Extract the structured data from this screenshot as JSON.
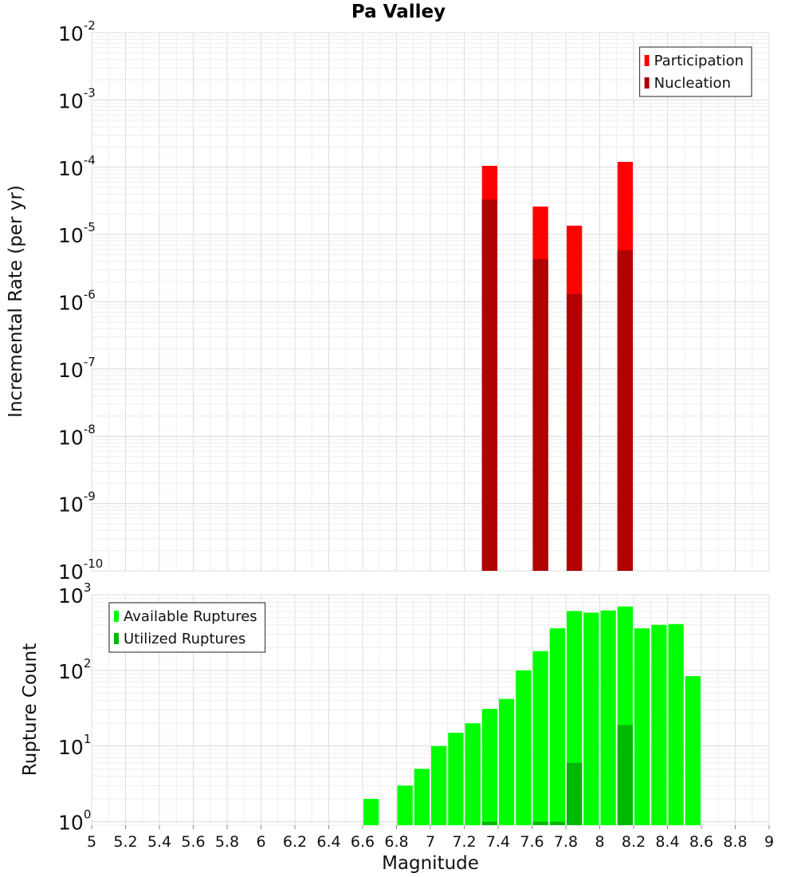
{
  "chart_data": [
    {
      "type": "bar",
      "title": "Pa Valley",
      "ylabel": "Incremental Rate (per yr)",
      "xlabel": "",
      "x_range": [
        5,
        9
      ],
      "y_scale": "log",
      "ylim": [
        1e-10,
        0.01
      ],
      "y_ticks": [
        {
          "base": "10",
          "exp": "-2"
        },
        {
          "base": "10",
          "exp": "-3"
        },
        {
          "base": "10",
          "exp": "-4"
        },
        {
          "base": "10",
          "exp": "-5"
        },
        {
          "base": "10",
          "exp": "-6"
        },
        {
          "base": "10",
          "exp": "-7"
        },
        {
          "base": "10",
          "exp": "-8"
        },
        {
          "base": "10",
          "exp": "-9"
        },
        {
          "base": "10",
          "exp": "-10"
        }
      ],
      "grid": true,
      "legend_position": "top-right",
      "bin_width": 0.1,
      "x": [
        7.35,
        7.65,
        7.85,
        8.15
      ],
      "series": [
        {
          "name": "Participation",
          "color": "#ff0000",
          "values": [
            0.000105,
            2.6e-05,
            1.35e-05,
            0.00012
          ]
        },
        {
          "name": "Nucleation",
          "color": "#b00000",
          "values": [
            3.3e-05,
            4.3e-06,
            1.3e-06,
            5.8e-06
          ]
        }
      ]
    },
    {
      "type": "bar",
      "title": "",
      "ylabel": "Rupture Count",
      "xlabel": "Magnitude",
      "x_range": [
        5,
        9
      ],
      "x_ticks": [
        "5",
        "5.2",
        "5.4",
        "5.6",
        "5.8",
        "6",
        "6.2",
        "6.4",
        "6.6",
        "6.8",
        "7",
        "7.2",
        "7.4",
        "7.6",
        "7.8",
        "8",
        "8.2",
        "8.4",
        "8.6",
        "8.8",
        "9"
      ],
      "y_scale": "log",
      "ylim": [
        0.9,
        1000
      ],
      "y_ticks": [
        {
          "base": "10",
          "exp": "3"
        },
        {
          "base": "10",
          "exp": "2"
        },
        {
          "base": "10",
          "exp": "1"
        },
        {
          "base": "10",
          "exp": "0"
        }
      ],
      "grid": true,
      "legend_position": "top-left",
      "bin_width": 0.1,
      "x": [
        6.65,
        6.85,
        6.95,
        7.05,
        7.15,
        7.25,
        7.35,
        7.45,
        7.55,
        7.65,
        7.75,
        7.85,
        7.95,
        8.05,
        8.15,
        8.25,
        8.35,
        8.45,
        8.55
      ],
      "series": [
        {
          "name": "Available Ruptures",
          "color": "#00ff00",
          "values": [
            2,
            3,
            5,
            10,
            15,
            20,
            31,
            42,
            100,
            180,
            360,
            610,
            580,
            620,
            700,
            360,
            400,
            410,
            84
          ]
        },
        {
          "name": "Utilized Ruptures",
          "color": "#00b800",
          "values": [
            0,
            0,
            0,
            0,
            0,
            0,
            1,
            0,
            0,
            1,
            1,
            6,
            0,
            0,
            19,
            0,
            0,
            0,
            0
          ]
        }
      ]
    }
  ]
}
